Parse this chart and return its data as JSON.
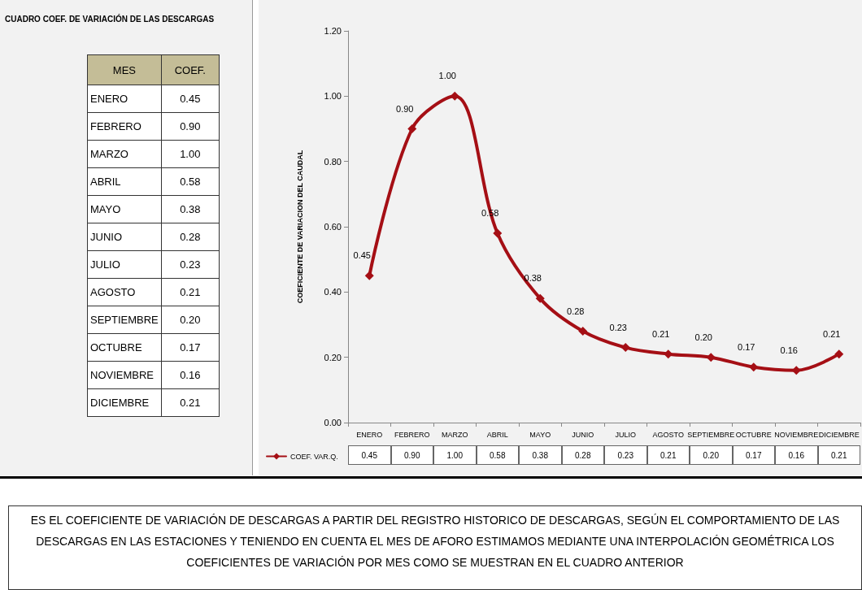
{
  "chart_data": {
    "type": "line",
    "title": "CUADRO COEF. DE VARIACIÓN DE LAS DESCARGAS",
    "ylabel": "COEFICIENTE DE VARIACION DEL CAUDAL",
    "categories": [
      "ENERO",
      "FEBRERO",
      "MARZO",
      "ABRIL",
      "MAYO",
      "JUNIO",
      "JULIO",
      "AGOSTO",
      "SEPTIEMBRE",
      "OCTUBRE",
      "NOVIEMBRE",
      "DICIEMBRE"
    ],
    "series": [
      {
        "name": "COEF. VAR.Q.",
        "color": "#a50f15",
        "values": [
          0.45,
          0.9,
          1.0,
          0.58,
          0.38,
          0.28,
          0.23,
          0.21,
          0.2,
          0.17,
          0.16,
          0.21
        ],
        "value_labels": [
          "0.45",
          "0.90",
          "1.00",
          "0.58",
          "0.38",
          "0.28",
          "0.23",
          "0.21",
          "0.20",
          "0.17",
          "0.16",
          "0.21"
        ]
      }
    ],
    "ylim": [
      0,
      1.2
    ],
    "yticks": [
      {
        "value": 0,
        "label": "0.00"
      },
      {
        "value": 0.2,
        "label": "0.20"
      },
      {
        "value": 0.4,
        "label": "0.40"
      },
      {
        "value": 0.6,
        "label": "0.60"
      },
      {
        "value": 0.8,
        "label": "0.80"
      },
      {
        "value": 1.0,
        "label": "1.00"
      },
      {
        "value": 1.2,
        "label": "1.20"
      }
    ],
    "grid": false,
    "legend": "bottom left",
    "marker": "diamond",
    "line_style": "solid",
    "annotations": [
      "MES",
      "COEF.",
      "ES EL COEFICIENTE DE  VARIACIÓN  DE DESCARGAS A PARTIR DEL REGISTRO HISTORICO DE DESCARGAS, SEGÚN EL COMPORTAMIENTO DE LAS DESCARGAS EN LAS ESTACIONES Y TENIENDO EN CUENTA EL MES DE AFORO ESTIMAMOS MEDIANTE UNA INTERPOLACIÓN GEOMÉTRICA LOS COEFICIENTES DE VARIACIÓN POR MES COMO SE MUESTRAN EN EL CUADRO ANTERIOR"
    ]
  }
}
